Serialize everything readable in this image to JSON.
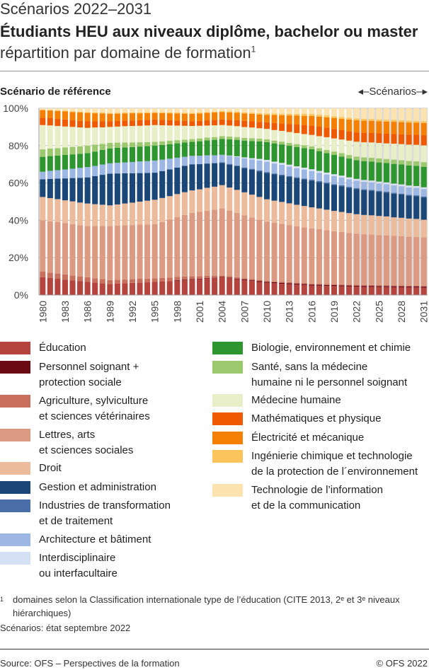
{
  "header": {
    "kicker": "Scénarios 2022–2031",
    "title": "Étudiants HEU aux niveaux diplôme, bachelor ou master",
    "subtitle": "répartition par domaine de formation",
    "subtitle_note": "1"
  },
  "chart_labels": {
    "reference": "Scénario de référence",
    "scenarios": "◂–Scénarios–▸"
  },
  "footnote": {
    "marker": "1",
    "text": "domaines selon la Classification internationale type de l’éducation (CITE 2013, 2ᵉ et 3ᵉ niveaux hiérarchiques)",
    "scenario_state": "Scénarios: état septembre 2022"
  },
  "footer": {
    "source": "Source: OFS – Perspectives de la formation",
    "copyright": "© OFS 2022"
  },
  "chart_data": {
    "type": "bar",
    "stacked": true,
    "percent": true,
    "ylim": [
      0,
      100
    ],
    "yticks": [
      "0%",
      "20%",
      "40%",
      "60%",
      "80%",
      "100%"
    ],
    "grid": true,
    "scenario_start": 2022,
    "legend_position": "bottom",
    "xtick_labels": [
      "1980",
      "1983",
      "1986",
      "1989",
      "1992",
      "1995",
      "1998",
      "2001",
      "2004",
      "2007",
      "2010",
      "2013",
      "2016",
      "2019",
      "2022",
      "2025",
      "2028",
      "2031"
    ],
    "x": [
      1980,
      1981,
      1982,
      1983,
      1984,
      1985,
      1986,
      1987,
      1988,
      1989,
      1990,
      1991,
      1992,
      1993,
      1994,
      1995,
      1996,
      1997,
      1998,
      1999,
      2000,
      2001,
      2002,
      2003,
      2004,
      2005,
      2006,
      2007,
      2008,
      2009,
      2010,
      2011,
      2012,
      2013,
      2014,
      2015,
      2016,
      2017,
      2018,
      2019,
      2020,
      2021,
      2022,
      2023,
      2024,
      2025,
      2026,
      2027,
      2028,
      2029,
      2030,
      2031
    ],
    "series": [
      {
        "name": "Éducation",
        "color": "#b5443f",
        "values": [
          9.5,
          9.1,
          8.7,
          8.3,
          7.8,
          7.4,
          7.0,
          6.7,
          6.3,
          6.0,
          6.2,
          6.3,
          6.5,
          6.7,
          6.8,
          7.0,
          7.2,
          7.5,
          7.7,
          8.0,
          8.2,
          8.5,
          8.9,
          9.2,
          9.5,
          9.0,
          8.5,
          8.0,
          7.5,
          7.0,
          6.5,
          6.3,
          6.0,
          5.8,
          5.5,
          5.3,
          5.0,
          4.9,
          4.8,
          4.8,
          4.7,
          4.6,
          4.5,
          4.4,
          4.4,
          4.3,
          4.3,
          4.2,
          4.2,
          4.1,
          4.1,
          4.0
        ]
      },
      {
        "name": "Personnel soignant +\nprotection sociale",
        "color": "#6b0a13",
        "values": [
          0,
          0,
          0,
          0,
          0,
          0,
          0,
          0,
          0,
          0,
          0,
          0,
          0,
          0,
          0,
          0,
          0,
          0,
          0.3,
          0.3,
          0.3,
          0.3,
          0.3,
          0.2,
          0.2,
          0.3,
          0.3,
          0.4,
          0.4,
          0.5,
          0.5,
          0.5,
          0.5,
          0.5,
          0.5,
          0.5,
          0.5,
          0.5,
          0.5,
          0.5,
          0.5,
          0.5,
          0.5,
          0.5,
          0.5,
          0.5,
          0.5,
          0.5,
          0.5,
          0.5,
          0.5,
          0.5
        ]
      },
      {
        "name": "Agriculture, sylviculture\net sciences vétérinaires",
        "color": "#c96f5e",
        "values": [
          3.0,
          2.9,
          2.8,
          2.8,
          2.7,
          2.6,
          2.5,
          2.3,
          2.2,
          2.0,
          2.0,
          2.0,
          2.0,
          2.0,
          2.0,
          2.0,
          1.9,
          1.8,
          1.7,
          1.6,
          1.5,
          1.3,
          1.2,
          1.0,
          0.8,
          0.8,
          0.7,
          0.7,
          0.6,
          0.6,
          0.5,
          0.5,
          0.5,
          0.5,
          0.5,
          0.5,
          0.5,
          0.5,
          0.5,
          0.5,
          0.5,
          0.5,
          0.5,
          0.5,
          0.5,
          0.5,
          0.5,
          0.5,
          0.5,
          0.5,
          0.5,
          0.5
        ]
      },
      {
        "name": "Lettres, arts\net sciences sociales",
        "color": "#dc9a82",
        "values": [
          27.5,
          27.5,
          27.5,
          27.5,
          27.5,
          27.5,
          27.5,
          28.0,
          28.5,
          29.0,
          29.0,
          29.0,
          29.0,
          29.0,
          29.0,
          29.0,
          30.0,
          31.0,
          32.0,
          33.0,
          34.0,
          34.5,
          35.0,
          35.5,
          36.0,
          35.3,
          34.5,
          33.8,
          33.0,
          32.3,
          31.5,
          31.1,
          30.7,
          30.3,
          29.8,
          29.4,
          29.0,
          28.8,
          28.5,
          28.3,
          28.0,
          27.8,
          27.5,
          27.3,
          27.2,
          27.0,
          26.8,
          26.7,
          26.5,
          26.3,
          26.2,
          26.0
        ]
      },
      {
        "name": "Droit",
        "color": "#ecbb9b",
        "values": [
          12.5,
          12.4,
          12.3,
          12.3,
          12.2,
          12.1,
          12.0,
          11.7,
          11.3,
          11.0,
          11.3,
          11.7,
          12.0,
          12.3,
          12.7,
          13.0,
          12.8,
          12.6,
          12.4,
          12.2,
          12.0,
          12.1,
          12.3,
          12.4,
          12.5,
          12.4,
          12.3,
          12.3,
          12.2,
          12.1,
          12.0,
          11.8,
          11.7,
          11.5,
          11.3,
          11.2,
          11.0,
          10.9,
          10.8,
          10.8,
          10.7,
          10.6,
          10.5,
          10.4,
          10.3,
          10.3,
          10.2,
          10.0,
          9.9,
          9.8,
          9.7,
          9.5
        ]
      },
      {
        "name": "Gestion et administration",
        "color": "#1b4778",
        "values": [
          9.5,
          10.3,
          11.0,
          11.8,
          12.5,
          13.3,
          14.0,
          15.0,
          16.0,
          17.0,
          16.6,
          16.2,
          15.8,
          15.3,
          14.9,
          14.5,
          14.4,
          14.3,
          14.2,
          14.1,
          14.0,
          13.5,
          13.0,
          12.5,
          12.0,
          12.3,
          12.7,
          13.0,
          13.3,
          13.7,
          14.0,
          14.0,
          14.0,
          14.0,
          14.0,
          14.0,
          14.0,
          13.9,
          13.8,
          13.8,
          13.7,
          13.6,
          13.5,
          13.3,
          13.2,
          13.0,
          12.8,
          12.7,
          12.5,
          12.3,
          12.2,
          12.0
        ]
      },
      {
        "name": "Industries de transformation\net de traitement",
        "color": "#4a6fa8",
        "values": [
          0,
          0,
          0,
          0,
          0,
          0,
          0,
          0,
          0,
          0,
          0,
          0,
          0,
          0,
          0,
          0,
          0,
          0,
          0,
          0,
          0,
          0.1,
          0.2,
          0.3,
          0.3,
          0.4,
          0.4,
          0.4,
          0.5,
          0.5,
          0.5,
          0.5,
          0.5,
          0.5,
          0.5,
          0.5,
          0.5,
          0.5,
          0.5,
          0.5,
          0.5,
          0.5,
          0.5,
          0.5,
          0.5,
          0.5,
          0.5,
          0.5,
          0.5,
          0.5,
          0.5,
          0.5
        ]
      },
      {
        "name": "Architecture et bâtiment",
        "color": "#9db7e4",
        "values": [
          4.0,
          4.3,
          4.5,
          4.8,
          5.0,
          5.3,
          5.5,
          5.5,
          5.5,
          5.5,
          5.7,
          5.8,
          6.0,
          6.2,
          6.3,
          6.5,
          6.1,
          5.7,
          5.3,
          4.9,
          4.5,
          4.4,
          4.3,
          4.1,
          4.0,
          4.3,
          4.5,
          4.8,
          5.0,
          5.3,
          5.5,
          5.3,
          5.2,
          5.0,
          4.8,
          4.7,
          4.5,
          4.4,
          4.3,
          4.3,
          4.2,
          4.1,
          4.0,
          4.0,
          4.0,
          4.0,
          4.0,
          4.0,
          4.0,
          4.0,
          4.0,
          4.0
        ]
      },
      {
        "name": "Interdisciplinaire\nou interfacultaire",
        "color": "#d6e0f5",
        "values": [
          0,
          0,
          0,
          0,
          0,
          0,
          0,
          0,
          0,
          0,
          0,
          0,
          0,
          0,
          0,
          0,
          0,
          0,
          0,
          0,
          0,
          0,
          0,
          0,
          0,
          0.2,
          0.4,
          0.6,
          0.7,
          0.9,
          1.0,
          1.0,
          1.0,
          1.0,
          1.0,
          1.0,
          1.0,
          1.0,
          1.0,
          1.0,
          1.0,
          1.0,
          1.0,
          1.0,
          1.0,
          1.0,
          1.0,
          1.0,
          1.0,
          1.0,
          1.0,
          1.0
        ]
      },
      {
        "name": "Biologie, environnement et chimie",
        "color": "#2e962e",
        "values": [
          8.0,
          7.9,
          7.8,
          7.8,
          7.7,
          7.6,
          7.5,
          7.7,
          7.8,
          8.0,
          8.0,
          8.0,
          8.0,
          8.0,
          8.0,
          8.0,
          7.9,
          7.8,
          7.7,
          7.6,
          7.5,
          7.8,
          8.0,
          8.3,
          8.5,
          8.7,
          8.8,
          9.0,
          9.2,
          9.3,
          9.5,
          9.7,
          9.8,
          10.0,
          10.2,
          10.3,
          10.5,
          10.4,
          10.3,
          10.3,
          10.2,
          10.1,
          10.0,
          10.1,
          10.2,
          10.3,
          10.4,
          10.6,
          10.7,
          10.8,
          10.9,
          11.0
        ]
      },
      {
        "name": "Santé, sans la médecine\nhumaine ni le personnel soignant",
        "color": "#9dc96e",
        "values": [
          4.0,
          4.0,
          4.0,
          4.0,
          4.0,
          4.0,
          4.0,
          3.7,
          3.3,
          3.0,
          2.8,
          2.7,
          2.5,
          2.3,
          2.2,
          2.0,
          1.9,
          1.8,
          1.7,
          1.6,
          1.5,
          1.5,
          1.5,
          1.5,
          1.5,
          1.5,
          1.5,
          1.5,
          1.5,
          1.5,
          1.5,
          1.5,
          1.5,
          1.5,
          1.5,
          1.5,
          1.5,
          1.6,
          1.7,
          1.8,
          1.8,
          1.9,
          2.0,
          2.1,
          2.1,
          2.2,
          2.2,
          2.3,
          2.3,
          2.4,
          2.4,
          2.5
        ]
      },
      {
        "name": "Médecine humaine",
        "color": "#e8efc8",
        "values": [
          13.0,
          12.4,
          11.8,
          11.3,
          10.7,
          10.1,
          9.5,
          9.2,
          8.8,
          8.5,
          8.6,
          8.7,
          8.8,
          8.8,
          8.9,
          9.0,
          8.6,
          8.2,
          7.8,
          7.4,
          7.0,
          6.8,
          6.5,
          6.3,
          6.0,
          5.9,
          5.8,
          5.8,
          5.7,
          5.6,
          5.5,
          5.6,
          5.7,
          5.8,
          5.8,
          5.9,
          6.0,
          6.3,
          6.7,
          7.0,
          7.3,
          7.7,
          8.0,
          8.1,
          8.2,
          8.3,
          8.4,
          8.6,
          8.7,
          8.8,
          8.9,
          9.0
        ]
      },
      {
        "name": "Mathématiques et physique",
        "color": "#ef5a00",
        "values": [
          4.0,
          3.9,
          3.8,
          3.8,
          3.7,
          3.6,
          3.5,
          3.3,
          3.2,
          3.0,
          3.0,
          3.0,
          3.0,
          3.0,
          3.0,
          3.0,
          2.9,
          2.8,
          2.7,
          2.6,
          2.5,
          2.6,
          2.8,
          2.9,
          3.0,
          3.1,
          3.2,
          3.3,
          3.3,
          3.4,
          3.5,
          3.8,
          4.0,
          4.3,
          4.5,
          4.8,
          5.0,
          5.0,
          5.0,
          5.0,
          5.0,
          5.0,
          5.0,
          5.1,
          5.1,
          5.2,
          5.2,
          5.3,
          5.3,
          5.4,
          5.4,
          5.5
        ]
      },
      {
        "name": "Électricité et mécanique",
        "color": "#f47f00",
        "values": [
          4.0,
          4.1,
          4.2,
          4.3,
          4.3,
          4.4,
          4.5,
          4.3,
          4.2,
          4.0,
          3.9,
          3.8,
          3.8,
          3.7,
          3.6,
          3.5,
          3.6,
          3.7,
          3.8,
          3.9,
          4.0,
          4.0,
          4.0,
          4.0,
          4.0,
          4.0,
          4.0,
          4.0,
          4.0,
          4.0,
          4.0,
          4.2,
          4.3,
          4.5,
          4.7,
          4.8,
          5.0,
          5.3,
          5.5,
          5.8,
          6.0,
          6.3,
          6.5,
          6.5,
          6.5,
          6.5,
          6.5,
          6.5,
          6.5,
          6.5,
          6.5,
          6.5
        ]
      },
      {
        "name": "Ingénierie chimique et technologie\nde la protection de l´environnement",
        "color": "#fcc45c",
        "values": [
          0.3,
          0.3,
          0.4,
          0.4,
          0.4,
          0.5,
          0.5,
          0.5,
          0.5,
          0.5,
          0.5,
          0.5,
          0.5,
          0.5,
          0.5,
          0.5,
          0.5,
          0.5,
          0.5,
          0.5,
          0.5,
          0.5,
          0.5,
          0.5,
          0.5,
          0.5,
          0.5,
          0.6,
          0.6,
          0.7,
          0.7,
          0.8,
          0.8,
          0.9,
          0.9,
          1.0,
          1.0,
          1.0,
          1.0,
          1.0,
          1.0,
          1.0,
          1.0,
          1.0,
          1.0,
          1.0,
          1.0,
          1.0,
          1.0,
          1.0,
          1.0,
          1.0
        ]
      },
      {
        "name": "Technologie de l’information\net de la communication",
        "color": "#fde3b0",
        "values": [
          0.7,
          0.9,
          1.1,
          1.3,
          1.6,
          1.8,
          2.0,
          2.2,
          2.3,
          2.5,
          2.4,
          2.3,
          2.2,
          2.2,
          2.1,
          2.0,
          2.1,
          2.2,
          2.3,
          2.4,
          2.5,
          2.3,
          2.0,
          1.8,
          1.5,
          1.7,
          1.9,
          2.2,
          2.4,
          2.6,
          2.8,
          2.8,
          2.9,
          2.9,
          3.0,
          3.0,
          3.0,
          3.4,
          3.8,
          4.3,
          4.7,
          5.1,
          5.5,
          5.7,
          5.8,
          6.0,
          6.2,
          6.3,
          6.5,
          6.7,
          6.8,
          7.0
        ]
      }
    ]
  }
}
